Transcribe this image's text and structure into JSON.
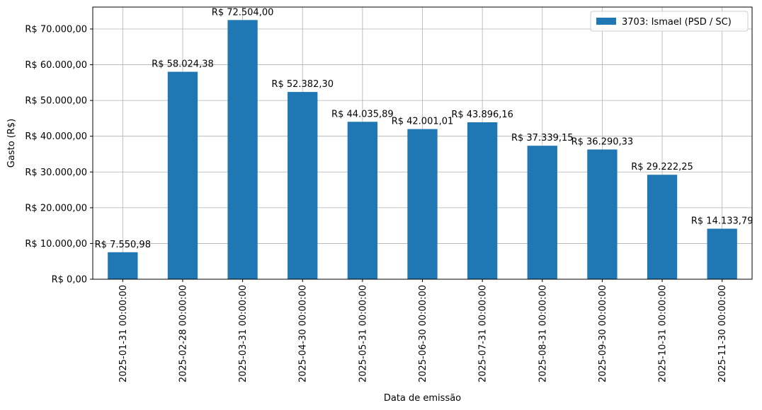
{
  "chart_data": {
    "type": "bar",
    "categories": [
      "2025-01-31 00:00:00",
      "2025-02-28 00:00:00",
      "2025-03-31 00:00:00",
      "2025-04-30 00:00:00",
      "2025-05-31 00:00:00",
      "2025-06-30 00:00:00",
      "2025-07-31 00:00:00",
      "2025-08-31 00:00:00",
      "2025-09-30 00:00:00",
      "2025-10-31 00:00:00",
      "2025-11-30 00:00:00"
    ],
    "series": [
      {
        "name": "3703: Ismael (PSD / SC)",
        "color": "#1f77b4",
        "values": [
          7550.98,
          58024.38,
          72504.0,
          52382.3,
          44035.89,
          42001.01,
          43896.16,
          37339.15,
          36290.33,
          29222.25,
          14133.79
        ],
        "labels": [
          "R$ 7.550,98",
          "R$ 58.024,38",
          "R$ 72.504,00",
          "R$ 52.382,30",
          "R$ 44.035,89",
          "R$ 42.001,01",
          "R$ 43.896,16",
          "R$ 37.339,15",
          "R$ 36.290,33",
          "R$ 29.222,25",
          "R$ 14.133,79"
        ]
      }
    ],
    "xlabel": "Data de emissão",
    "ylabel": "Gasto (R$)",
    "ylim": [
      0,
      76129
    ],
    "yticks": [
      0,
      10000,
      20000,
      30000,
      40000,
      50000,
      60000,
      70000
    ],
    "ytick_labels": [
      "R$ 0,00",
      "R$ 10.000,00",
      "R$ 20.000,00",
      "R$ 30.000,00",
      "R$ 40.000,00",
      "R$ 50.000,00",
      "R$ 60.000,00",
      "R$ 70.000,00"
    ],
    "grid": true,
    "legend_position": "top-right"
  }
}
